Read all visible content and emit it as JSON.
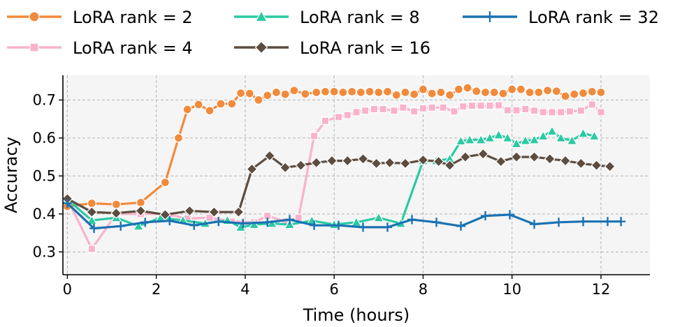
{
  "chart_data": {
    "type": "line",
    "xlabel": "Time (hours)",
    "ylabel": "Accuracy",
    "xlim": [
      -0.1,
      13.1
    ],
    "ylim": [
      0.24,
      0.765
    ],
    "xticks": [
      0,
      2,
      4,
      6,
      8,
      10,
      12
    ],
    "xtick_labels": [
      "0",
      "2",
      "4",
      "6",
      "8",
      "10",
      "12"
    ],
    "yticks": [
      0.3,
      0.4,
      0.5,
      0.6,
      0.7
    ],
    "ytick_labels": [
      "0.3",
      "0.4",
      "0.5",
      "0.6",
      "0.7"
    ],
    "grid": true,
    "legend_position": "top",
    "series": [
      {
        "name": "LoRA rank = 2",
        "color": "#f28a3c",
        "marker": "circle",
        "points": [
          [
            0,
            0.42
          ],
          [
            0.55,
            0.428
          ],
          [
            1.1,
            0.425
          ],
          [
            1.65,
            0.43
          ],
          [
            2.2,
            0.483
          ],
          [
            2.5,
            0.6
          ],
          [
            2.7,
            0.675
          ],
          [
            2.95,
            0.688
          ],
          [
            3.2,
            0.672
          ],
          [
            3.45,
            0.69
          ],
          [
            3.7,
            0.69
          ],
          [
            3.9,
            0.718
          ],
          [
            4.1,
            0.717
          ],
          [
            4.3,
            0.7
          ],
          [
            4.5,
            0.712
          ],
          [
            4.7,
            0.72
          ],
          [
            4.9,
            0.715
          ],
          [
            5.1,
            0.725
          ],
          [
            5.35,
            0.716
          ],
          [
            5.6,
            0.72
          ],
          [
            5.8,
            0.722
          ],
          [
            6.0,
            0.722
          ],
          [
            6.2,
            0.72
          ],
          [
            6.4,
            0.722
          ],
          [
            6.6,
            0.72
          ],
          [
            6.8,
            0.722
          ],
          [
            7.0,
            0.72
          ],
          [
            7.2,
            0.722
          ],
          [
            7.4,
            0.713
          ],
          [
            7.6,
            0.72
          ],
          [
            7.8,
            0.715
          ],
          [
            8.0,
            0.728
          ],
          [
            8.2,
            0.717
          ],
          [
            8.4,
            0.72
          ],
          [
            8.6,
            0.713
          ],
          [
            8.8,
            0.728
          ],
          [
            9.0,
            0.732
          ],
          [
            9.2,
            0.723
          ],
          [
            9.4,
            0.72
          ],
          [
            9.6,
            0.72
          ],
          [
            9.8,
            0.717
          ],
          [
            10.0,
            0.728
          ],
          [
            10.2,
            0.728
          ],
          [
            10.4,
            0.72
          ],
          [
            10.6,
            0.72
          ],
          [
            10.8,
            0.725
          ],
          [
            11.0,
            0.723
          ],
          [
            11.2,
            0.71
          ],
          [
            11.4,
            0.715
          ],
          [
            11.6,
            0.718
          ],
          [
            11.8,
            0.722
          ],
          [
            12.0,
            0.72
          ]
        ]
      },
      {
        "name": "LoRA rank = 4",
        "color": "#f9b2cc",
        "marker": "square",
        "points": [
          [
            0,
            0.44
          ],
          [
            0.55,
            0.308
          ],
          [
            1.1,
            0.4
          ],
          [
            1.65,
            0.4
          ],
          [
            2.2,
            0.4
          ],
          [
            2.7,
            0.388
          ],
          [
            3.2,
            0.39
          ],
          [
            3.7,
            0.38
          ],
          [
            4.2,
            0.378
          ],
          [
            4.5,
            0.395
          ],
          [
            4.9,
            0.38
          ],
          [
            5.2,
            0.39
          ],
          [
            5.55,
            0.605
          ],
          [
            5.8,
            0.645
          ],
          [
            6.1,
            0.655
          ],
          [
            6.3,
            0.66
          ],
          [
            6.5,
            0.668
          ],
          [
            6.7,
            0.672
          ],
          [
            6.9,
            0.676
          ],
          [
            7.1,
            0.676
          ],
          [
            7.35,
            0.672
          ],
          [
            7.55,
            0.68
          ],
          [
            7.8,
            0.67
          ],
          [
            8.0,
            0.678
          ],
          [
            8.2,
            0.68
          ],
          [
            8.45,
            0.68
          ],
          [
            8.7,
            0.67
          ],
          [
            8.9,
            0.683
          ],
          [
            9.1,
            0.685
          ],
          [
            9.3,
            0.685
          ],
          [
            9.5,
            0.685
          ],
          [
            9.7,
            0.686
          ],
          [
            9.9,
            0.673
          ],
          [
            10.1,
            0.673
          ],
          [
            10.3,
            0.676
          ],
          [
            10.5,
            0.672
          ],
          [
            10.7,
            0.668
          ],
          [
            10.9,
            0.668
          ],
          [
            11.1,
            0.668
          ],
          [
            11.3,
            0.67
          ],
          [
            11.55,
            0.672
          ],
          [
            11.8,
            0.688
          ],
          [
            12.0,
            0.668
          ]
        ]
      },
      {
        "name": "LoRA rank = 8",
        "color": "#2cc9a3",
        "marker": "triangle",
        "points": [
          [
            0,
            0.438
          ],
          [
            0.55,
            0.383
          ],
          [
            1.1,
            0.39
          ],
          [
            1.6,
            0.368
          ],
          [
            2.1,
            0.39
          ],
          [
            2.6,
            0.383
          ],
          [
            3.1,
            0.375
          ],
          [
            3.6,
            0.383
          ],
          [
            3.9,
            0.365
          ],
          [
            4.2,
            0.372
          ],
          [
            4.6,
            0.375
          ],
          [
            5.0,
            0.372
          ],
          [
            5.5,
            0.382
          ],
          [
            6.0,
            0.372
          ],
          [
            6.5,
            0.378
          ],
          [
            7.0,
            0.39
          ],
          [
            7.5,
            0.375
          ],
          [
            8.0,
            0.54
          ],
          [
            8.3,
            0.54
          ],
          [
            8.6,
            0.545
          ],
          [
            8.85,
            0.592
          ],
          [
            9.05,
            0.595
          ],
          [
            9.3,
            0.595
          ],
          [
            9.5,
            0.6
          ],
          [
            9.7,
            0.608
          ],
          [
            9.9,
            0.6
          ],
          [
            10.1,
            0.585
          ],
          [
            10.3,
            0.593
          ],
          [
            10.5,
            0.595
          ],
          [
            10.7,
            0.605
          ],
          [
            10.9,
            0.618
          ],
          [
            11.1,
            0.6
          ],
          [
            11.35,
            0.593
          ],
          [
            11.6,
            0.612
          ],
          [
            11.85,
            0.605
          ]
        ]
      },
      {
        "name": "LoRA rank = 16",
        "color": "#5c4d40",
        "marker": "diamond",
        "points": [
          [
            0,
            0.44
          ],
          [
            0.55,
            0.405
          ],
          [
            1.1,
            0.402
          ],
          [
            1.65,
            0.408
          ],
          [
            2.2,
            0.398
          ],
          [
            2.75,
            0.408
          ],
          [
            3.3,
            0.405
          ],
          [
            3.85,
            0.405
          ],
          [
            4.15,
            0.518
          ],
          [
            4.55,
            0.553
          ],
          [
            4.9,
            0.522
          ],
          [
            5.25,
            0.528
          ],
          [
            5.6,
            0.535
          ],
          [
            5.95,
            0.54
          ],
          [
            6.3,
            0.54
          ],
          [
            6.65,
            0.545
          ],
          [
            6.95,
            0.533
          ],
          [
            7.25,
            0.535
          ],
          [
            7.6,
            0.533
          ],
          [
            8.0,
            0.542
          ],
          [
            8.35,
            0.538
          ],
          [
            8.6,
            0.528
          ],
          [
            8.95,
            0.55
          ],
          [
            9.35,
            0.558
          ],
          [
            9.75,
            0.538
          ],
          [
            10.1,
            0.55
          ],
          [
            10.5,
            0.55
          ],
          [
            10.85,
            0.545
          ],
          [
            11.2,
            0.54
          ],
          [
            11.55,
            0.533
          ],
          [
            11.9,
            0.528
          ],
          [
            12.2,
            0.525
          ]
        ]
      },
      {
        "name": "LoRA rank = 32",
        "color": "#1a72b3",
        "marker": "plus",
        "points": [
          [
            0,
            0.428
          ],
          [
            0.6,
            0.362
          ],
          [
            1.2,
            0.368
          ],
          [
            1.75,
            0.378
          ],
          [
            2.3,
            0.382
          ],
          [
            2.85,
            0.37
          ],
          [
            3.4,
            0.38
          ],
          [
            3.95,
            0.375
          ],
          [
            4.5,
            0.378
          ],
          [
            5.0,
            0.385
          ],
          [
            5.55,
            0.37
          ],
          [
            6.1,
            0.37
          ],
          [
            6.65,
            0.365
          ],
          [
            7.2,
            0.365
          ],
          [
            7.75,
            0.385
          ],
          [
            8.3,
            0.378
          ],
          [
            8.85,
            0.368
          ],
          [
            9.4,
            0.395
          ],
          [
            9.95,
            0.398
          ],
          [
            10.5,
            0.373
          ],
          [
            11.05,
            0.378
          ],
          [
            11.6,
            0.38
          ],
          [
            12.15,
            0.38
          ],
          [
            12.45,
            0.38
          ]
        ]
      }
    ]
  }
}
